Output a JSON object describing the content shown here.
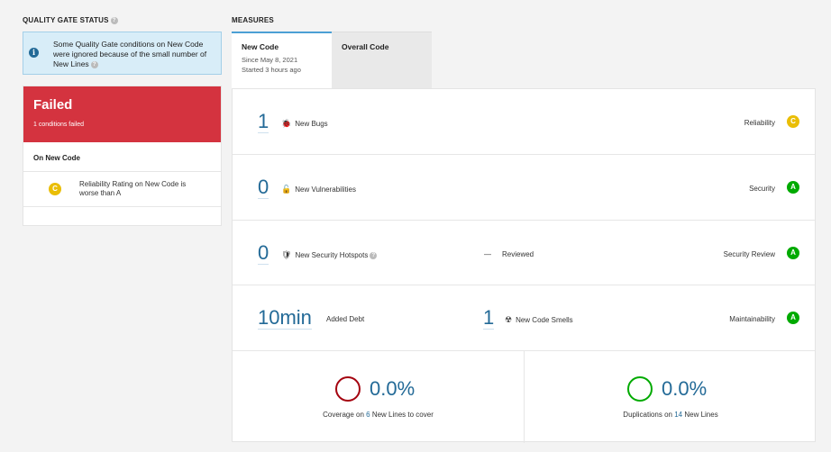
{
  "quality_gate": {
    "title": "QUALITY GATE STATUS",
    "info_text": "Some Quality Gate conditions on New Code were ignored because of the small number of New Lines",
    "status": "Failed",
    "conditions_failed": "1 conditions failed",
    "section": "On New Code",
    "condition": {
      "rating": "C",
      "text": "Reliability Rating on New Code is worse than A"
    }
  },
  "measures": {
    "title": "MEASURES",
    "tabs": [
      {
        "label": "New Code",
        "since": "Since May 8, 2021",
        "started": "Started 3 hours ago"
      },
      {
        "label": "Overall Code"
      }
    ],
    "rows": {
      "bugs": {
        "value": "1",
        "label": "New Bugs",
        "category": "Reliability",
        "rating": "C"
      },
      "vulns": {
        "value": "0",
        "label": "New Vulnerabilities",
        "category": "Security",
        "rating": "A"
      },
      "hotspots": {
        "value": "0",
        "label": "New Security Hotspots",
        "reviewed_value": "—",
        "reviewed_label": "Reviewed",
        "category": "Security Review",
        "rating": "A"
      },
      "maint": {
        "debt_value": "10min",
        "debt_label": "Added Debt",
        "smells_value": "1",
        "smells_label": "New Code Smells",
        "category": "Maintainability",
        "rating": "A"
      }
    },
    "coverage": {
      "value": "0.0%",
      "label_pre": "Coverage on ",
      "lines": "6",
      "label_post": " New Lines to cover"
    },
    "duplications": {
      "value": "0.0%",
      "label_pre": "Duplications on ",
      "lines": "14",
      "label_post": " New Lines"
    }
  },
  "colors": {
    "failed": "#d4333f",
    "rating_c": "#eabe06",
    "rating_a": "#00aa00",
    "coverage_circle": "#a4030f",
    "duplication_circle": "#00aa00",
    "link": "#236a97"
  }
}
